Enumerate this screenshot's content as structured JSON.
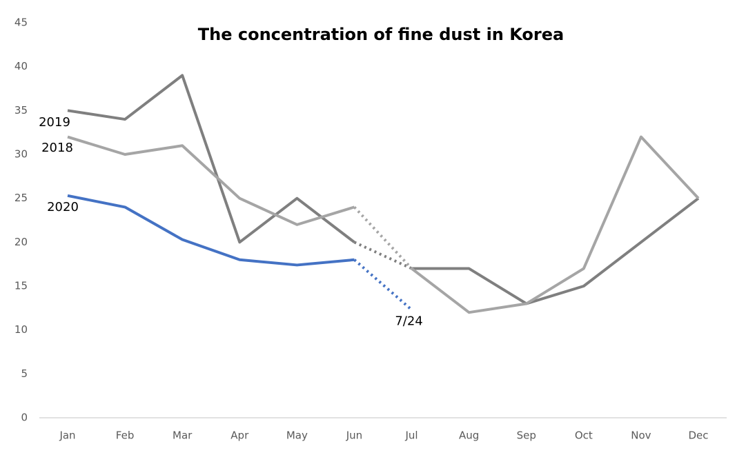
{
  "chart_data": {
    "type": "line",
    "title": "The concentration of fine dust in Korea",
    "categories": [
      "Jan",
      "Feb",
      "Mar",
      "Apr",
      "May",
      "Jun",
      "Jul",
      "Aug",
      "Sep",
      "Oct",
      "Nov",
      "Dec"
    ],
    "series": [
      {
        "name": "2019",
        "color": "#7f7f7f",
        "values": [
          35,
          34,
          39,
          20,
          25,
          20,
          17,
          17,
          13,
          15,
          20,
          25
        ],
        "dotted": [
          "Jun",
          "Jul"
        ]
      },
      {
        "name": "2018",
        "color": "#a5a5a5",
        "values": [
          32,
          30,
          31,
          25,
          22,
          24,
          17,
          12,
          13,
          17,
          32,
          25
        ],
        "dotted": [
          "Jun",
          "Jul"
        ]
      },
      {
        "name": "2020",
        "color": "#4472c4",
        "values": [
          25.3,
          24,
          20.3,
          18,
          17.4,
          18,
          12.3,
          null,
          null,
          null,
          null,
          null
        ],
        "dotted": [
          "Jun",
          "Jul"
        ],
        "annotation": "7/24"
      }
    ],
    "ylim": [
      0,
      45
    ],
    "yticks": [
      0,
      5,
      10,
      15,
      20,
      25,
      30,
      35,
      40,
      45
    ],
    "grid": false
  }
}
